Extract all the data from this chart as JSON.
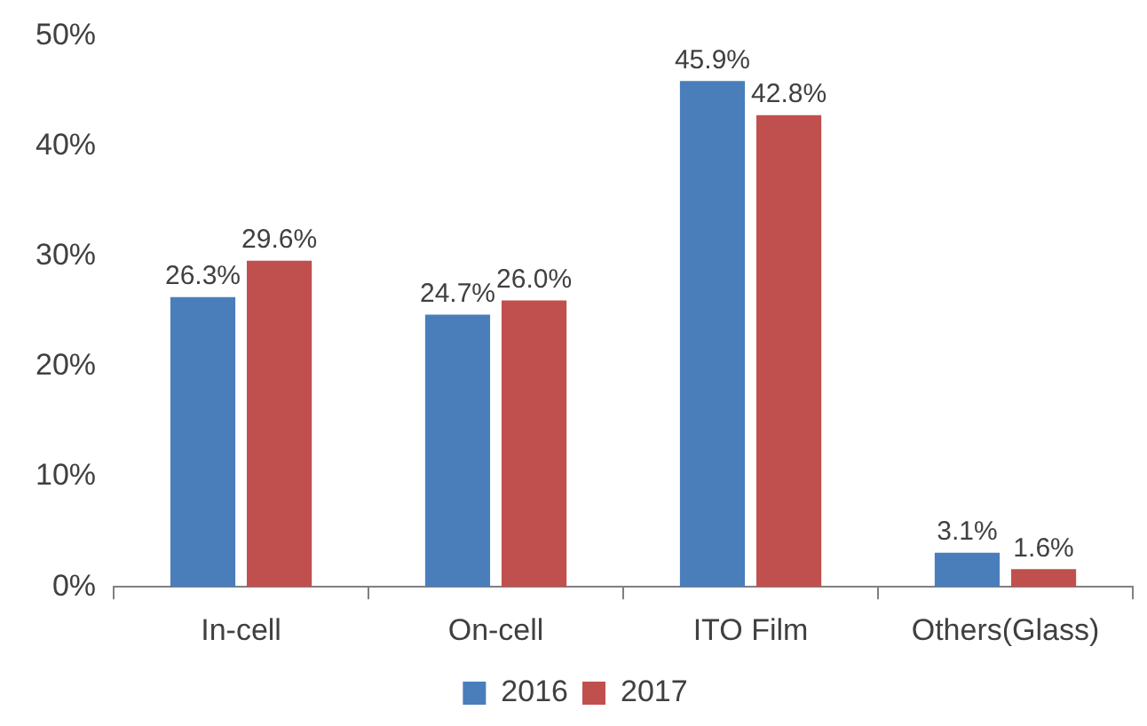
{
  "chart_data": {
    "type": "bar",
    "categories": [
      "In-cell",
      "On-cell",
      "ITO Film",
      "Others(Glass)"
    ],
    "series": [
      {
        "name": "2016",
        "color": "#4a7ebb",
        "values": [
          26.3,
          24.7,
          45.9,
          3.1
        ],
        "value_labels": [
          "26.3%",
          "24.7%",
          "45.9%",
          "3.1%"
        ]
      },
      {
        "name": "2017",
        "color": "#c0504d",
        "values": [
          29.6,
          26.0,
          42.8,
          1.6
        ],
        "value_labels": [
          "29.6%",
          "26.0%",
          "42.8%",
          "1.6%"
        ]
      }
    ],
    "ylim": [
      0,
      50
    ],
    "yticks": [
      {
        "value": 0,
        "label": "0%"
      },
      {
        "value": 10,
        "label": "10%"
      },
      {
        "value": 20,
        "label": "20%"
      },
      {
        "value": 30,
        "label": "30%"
      },
      {
        "value": 40,
        "label": "40%"
      },
      {
        "value": 50,
        "label": "50%"
      }
    ],
    "grid": false,
    "legend": "bottom"
  }
}
